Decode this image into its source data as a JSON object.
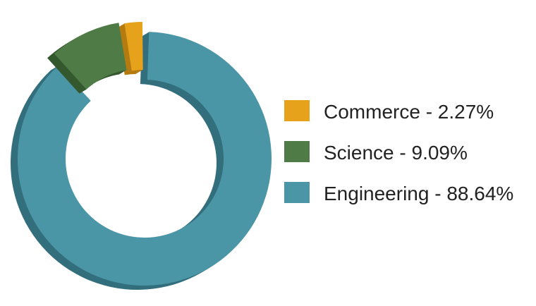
{
  "chart_data": {
    "type": "pie",
    "variant": "donut-3d-exploded",
    "title": "",
    "legend_position": "right",
    "categories": [
      "Commerce",
      "Science",
      "Engineering"
    ],
    "values": [
      2.27,
      9.09,
      88.64
    ],
    "legend_labels": [
      "Commerce - 2.27%",
      "Science - 9.09%",
      "Engineering - 88.64%"
    ],
    "colors": [
      "#e7a21c",
      "#4f7c46",
      "#4a96a6"
    ],
    "side_colors": [
      "#b47b10",
      "#35592f",
      "#336f7c"
    ]
  }
}
